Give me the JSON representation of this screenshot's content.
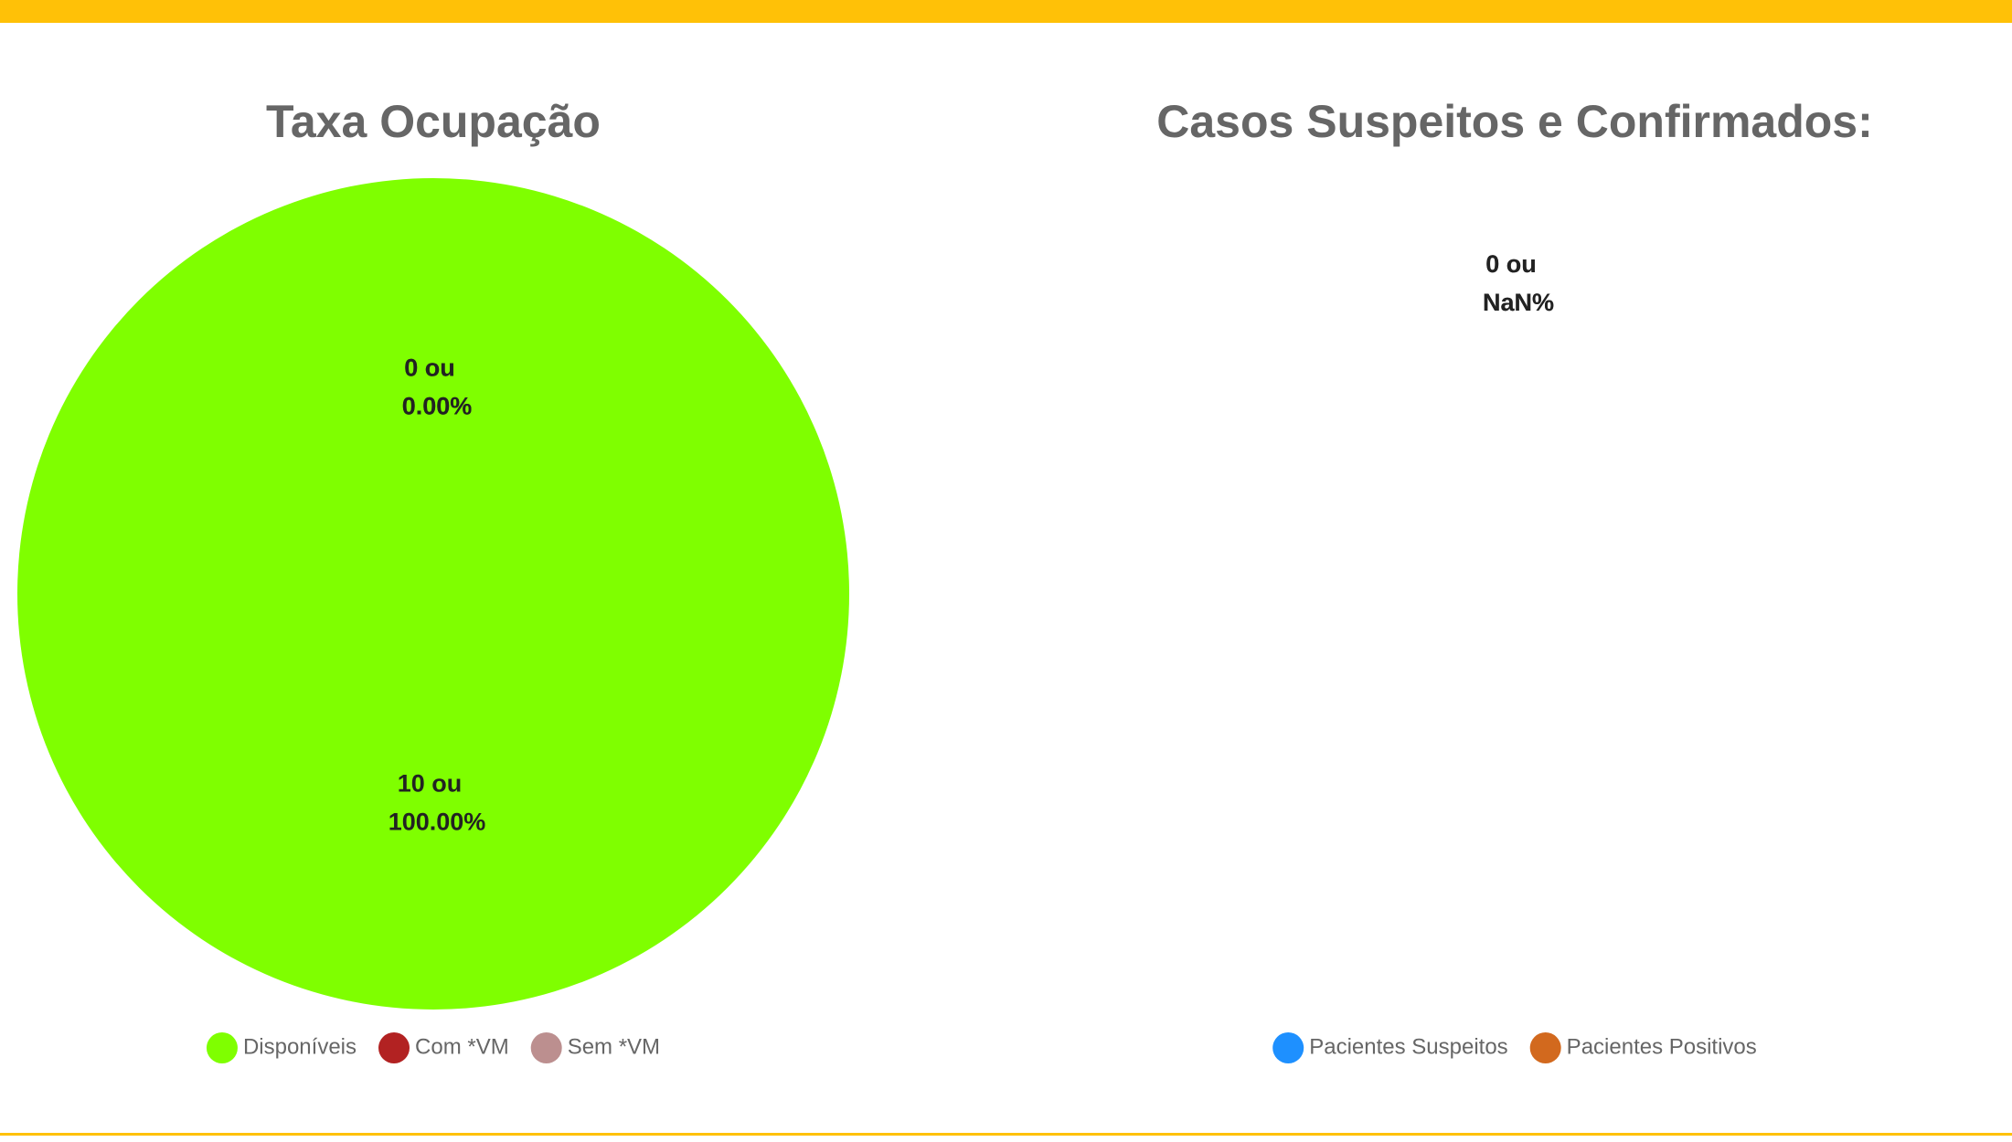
{
  "chart_data": [
    {
      "type": "pie",
      "title": "Taxa Ocupação",
      "categories": [
        "Disponíveis",
        "Com *VM",
        "Sem *VM"
      ],
      "values": [
        10,
        0,
        0
      ],
      "value_labels": [
        [
          "10 ou",
          "100.00%"
        ],
        [
          "0 ou",
          "0.00%"
        ],
        [
          "0 ou",
          "0.00%"
        ]
      ],
      "colors": [
        "#7fff00",
        "#b22222",
        "#bc8f8f"
      ]
    },
    {
      "type": "pie",
      "title": "Casos Suspeitos e Confirmados:",
      "categories": [
        "Pacientes Suspeitos",
        "Pacientes Positivos"
      ],
      "values": [
        0,
        0
      ],
      "value_labels": [
        [
          "0 ou",
          "NaN%"
        ],
        [
          "0 ou",
          "NaN%"
        ]
      ],
      "colors": [
        "#1e90ff",
        "#d2691e"
      ]
    }
  ]
}
